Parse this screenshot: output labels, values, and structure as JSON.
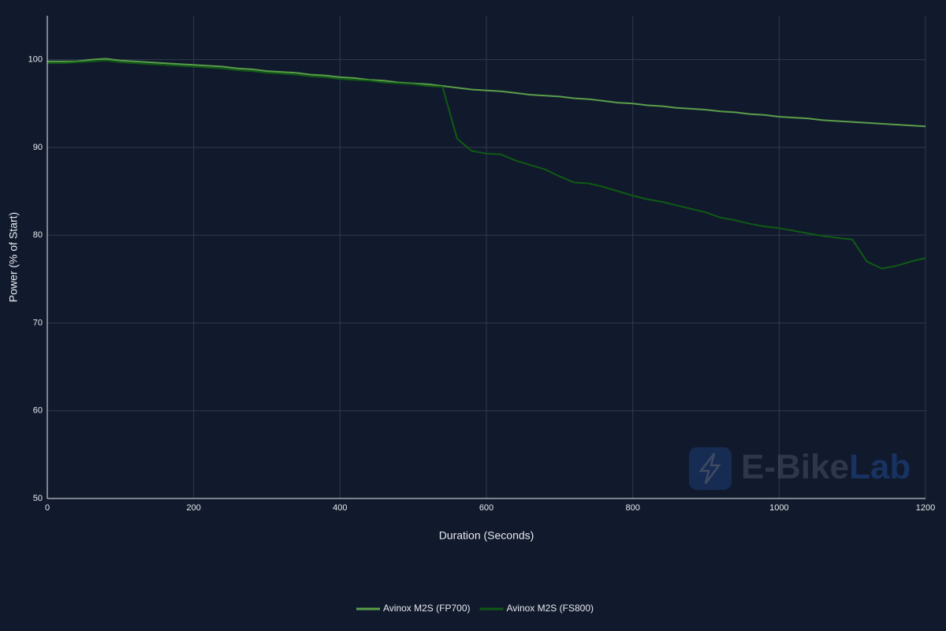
{
  "chart_data": {
    "type": "line",
    "xlabel": "Duration (Seconds)",
    "ylabel": "Power (% of Start)",
    "watermark": {
      "prefix": "E-Bike",
      "suffix": "Lab"
    },
    "x": [
      0,
      20,
      40,
      60,
      80,
      100,
      120,
      140,
      160,
      180,
      200,
      220,
      240,
      260,
      280,
      300,
      320,
      340,
      360,
      380,
      400,
      420,
      440,
      460,
      480,
      500,
      520,
      540,
      560,
      580,
      600,
      620,
      640,
      660,
      680,
      700,
      720,
      740,
      760,
      780,
      800,
      820,
      840,
      860,
      880,
      900,
      920,
      940,
      960,
      980,
      1000,
      1020,
      1040,
      1060,
      1080,
      1100,
      1120,
      1140,
      1160,
      1180,
      1200
    ],
    "series": [
      {
        "name": "Avinox M2S (FP700)",
        "color": "#5a9e4a",
        "values": [
          99.8,
          99.8,
          99.8,
          100,
          100.1,
          99.9,
          99.8,
          99.7,
          99.6,
          99.5,
          99.4,
          99.3,
          99.2,
          99.0,
          98.9,
          98.7,
          98.6,
          98.5,
          98.3,
          98.2,
          98.0,
          97.9,
          97.7,
          97.6,
          97.4,
          97.3,
          97.2,
          97.0,
          96.8,
          96.6,
          96.5,
          96.4,
          96.2,
          96.0,
          95.9,
          95.8,
          95.6,
          95.5,
          95.3,
          95.1,
          95.0,
          94.8,
          94.7,
          94.5,
          94.4,
          94.3,
          94.1,
          94.0,
          93.8,
          93.7,
          93.5,
          93.4,
          93.3,
          93.1,
          93.0,
          92.9,
          92.8,
          92.7,
          92.6,
          92.5,
          92.4
        ]
      },
      {
        "name": "Avinox M2S (FS800)",
        "color": "#0f5a14",
        "values": [
          99.6,
          99.6,
          99.7,
          99.8,
          99.9,
          99.7,
          99.6,
          99.5,
          99.4,
          99.3,
          99.2,
          99.1,
          99.0,
          98.8,
          98.7,
          98.5,
          98.4,
          98.3,
          98.1,
          98.0,
          97.8,
          97.7,
          97.6,
          97.4,
          97.3,
          97.2,
          97.0,
          96.9,
          91.0,
          89.6,
          89.3,
          89.2,
          88.5,
          88.0,
          87.5,
          86.7,
          86.0,
          85.9,
          85.5,
          85.0,
          84.5,
          84.1,
          83.8,
          83.4,
          83.0,
          82.6,
          82.0,
          81.7,
          81.3,
          81.0,
          80.8,
          80.5,
          80.2,
          79.9,
          79.7,
          79.5,
          77.0,
          76.2,
          76.5,
          77.0,
          77.4
        ]
      }
    ],
    "xlim": [
      0,
      1200
    ],
    "xticks": [
      0,
      200,
      400,
      600,
      800,
      1000,
      1200
    ],
    "ylim": [
      50,
      105
    ],
    "yticks": [
      50,
      60,
      70,
      80,
      90,
      100
    ],
    "grid": true,
    "legend": "bottom"
  }
}
